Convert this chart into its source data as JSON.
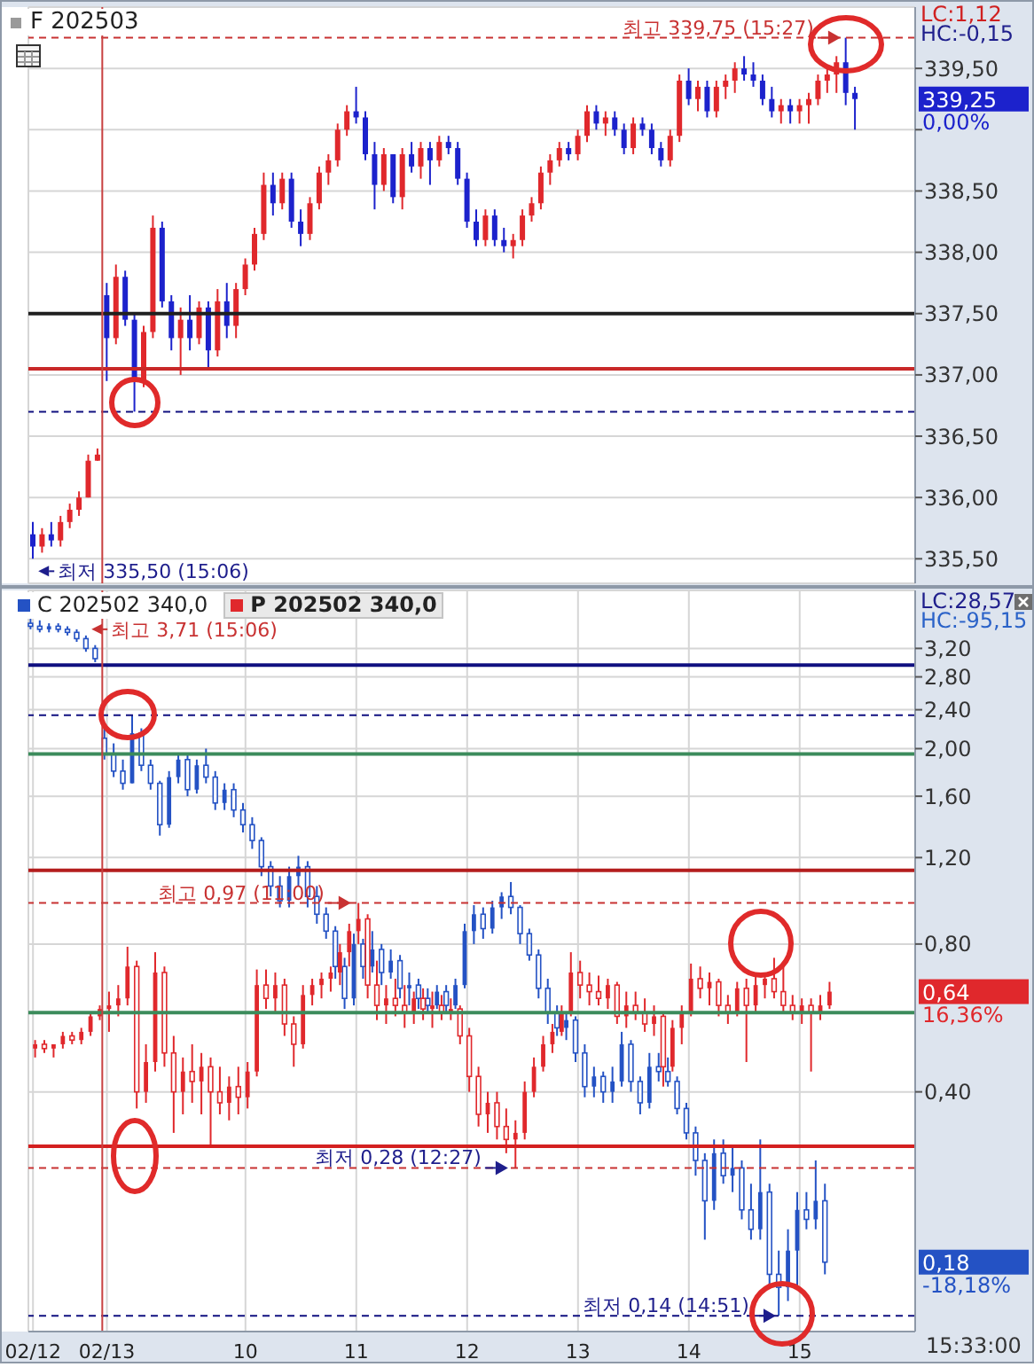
{
  "chart_data": [
    {
      "type": "candlestick",
      "title": "F 202503",
      "categories": [
        "02/12",
        null,
        null,
        null,
        null,
        null,
        null,
        null,
        "02/13",
        null,
        null,
        null,
        null,
        null,
        null,
        null,
        null,
        null,
        null,
        null,
        null,
        null,
        null,
        "10",
        null,
        null,
        null,
        null,
        null,
        null,
        null,
        null,
        null,
        null,
        null,
        "11",
        null,
        null,
        null,
        null,
        null,
        null,
        null,
        null,
        null,
        null,
        null,
        "12",
        null,
        null,
        null,
        null,
        null,
        null,
        null,
        null,
        null,
        null,
        null,
        "13",
        null,
        null,
        null,
        null,
        null,
        null,
        null,
        null,
        null,
        null,
        null,
        "14",
        null,
        null,
        null,
        null,
        null,
        null,
        null,
        null,
        null,
        null,
        null,
        "15",
        null,
        null,
        null,
        null,
        null,
        null,
        null,
        null,
        null,
        null,
        null,
        null
      ],
      "ohlc": [
        [
          335.7,
          335.8,
          335.5,
          335.6
        ],
        [
          335.6,
          335.75,
          335.55,
          335.7
        ],
        [
          335.7,
          335.8,
          335.6,
          335.65
        ],
        [
          335.65,
          335.85,
          335.6,
          335.8
        ],
        [
          335.8,
          335.95,
          335.75,
          335.9
        ],
        [
          335.9,
          336.05,
          335.85,
          336.0
        ],
        [
          336.0,
          336.35,
          336.0,
          336.3
        ],
        [
          336.3,
          336.4,
          336.3,
          336.35
        ],
        [
          337.65,
          337.75,
          336.95,
          337.3
        ],
        [
          337.3,
          337.9,
          337.25,
          337.8
        ],
        [
          337.8,
          337.85,
          337.4,
          337.45
        ],
        [
          337.45,
          337.5,
          336.7,
          336.95
        ],
        [
          336.95,
          337.4,
          336.9,
          337.35
        ],
        [
          337.35,
          338.3,
          337.3,
          338.2
        ],
        [
          338.2,
          338.25,
          337.55,
          337.6
        ],
        [
          337.6,
          337.65,
          337.2,
          337.3
        ],
        [
          337.3,
          337.55,
          337.0,
          337.45
        ],
        [
          337.45,
          337.65,
          337.2,
          337.3
        ],
        [
          337.3,
          337.6,
          337.25,
          337.55
        ],
        [
          337.55,
          337.6,
          337.05,
          337.2
        ],
        [
          337.2,
          337.7,
          337.15,
          337.6
        ],
        [
          337.6,
          337.75,
          337.3,
          337.4
        ],
        [
          337.4,
          337.75,
          337.3,
          337.7
        ],
        [
          337.7,
          337.95,
          337.65,
          337.9
        ],
        [
          337.9,
          338.2,
          337.85,
          338.15
        ],
        [
          338.15,
          338.65,
          338.1,
          338.55
        ],
        [
          338.55,
          338.65,
          338.3,
          338.4
        ],
        [
          338.4,
          338.65,
          338.35,
          338.6
        ],
        [
          338.6,
          338.65,
          338.2,
          338.25
        ],
        [
          338.25,
          338.35,
          338.05,
          338.15
        ],
        [
          338.15,
          338.45,
          338.1,
          338.4
        ],
        [
          338.4,
          338.7,
          338.35,
          338.65
        ],
        [
          338.65,
          338.8,
          338.55,
          338.75
        ],
        [
          338.75,
          339.05,
          338.7,
          339.0
        ],
        [
          339.0,
          339.2,
          338.95,
          339.15
        ],
        [
          339.15,
          339.35,
          339.05,
          339.1
        ],
        [
          339.1,
          339.15,
          338.75,
          338.8
        ],
        [
          338.8,
          338.9,
          338.35,
          338.55
        ],
        [
          338.55,
          338.85,
          338.5,
          338.8
        ],
        [
          338.8,
          338.8,
          338.4,
          338.45
        ],
        [
          338.45,
          338.85,
          338.35,
          338.8
        ],
        [
          338.8,
          338.9,
          338.65,
          338.7
        ],
        [
          338.7,
          338.9,
          338.6,
          338.85
        ],
        [
          338.85,
          338.9,
          338.55,
          338.75
        ],
        [
          338.75,
          338.95,
          338.7,
          338.9
        ],
        [
          338.9,
          338.95,
          338.8,
          338.85
        ],
        [
          338.85,
          338.9,
          338.55,
          338.6
        ],
        [
          338.6,
          338.65,
          338.2,
          338.25
        ],
        [
          338.25,
          338.35,
          338.05,
          338.1
        ],
        [
          338.1,
          338.35,
          338.05,
          338.3
        ],
        [
          338.3,
          338.35,
          338.05,
          338.1
        ],
        [
          338.1,
          338.2,
          338.0,
          338.05
        ],
        [
          338.05,
          338.15,
          337.95,
          338.1
        ],
        [
          338.1,
          338.35,
          338.05,
          338.3
        ],
        [
          338.3,
          338.45,
          338.25,
          338.4
        ],
        [
          338.4,
          338.7,
          338.35,
          338.65
        ],
        [
          338.65,
          338.8,
          338.55,
          338.75
        ],
        [
          338.75,
          338.9,
          338.7,
          338.85
        ],
        [
          338.85,
          338.9,
          338.75,
          338.8
        ],
        [
          338.8,
          339.0,
          338.75,
          338.95
        ],
        [
          338.95,
          339.2,
          338.9,
          339.15
        ],
        [
          339.15,
          339.2,
          339.0,
          339.05
        ],
        [
          339.05,
          339.15,
          338.95,
          339.1
        ],
        [
          339.1,
          339.15,
          338.95,
          339.0
        ],
        [
          339.0,
          339.05,
          338.8,
          338.85
        ],
        [
          338.85,
          339.1,
          338.8,
          339.05
        ],
        [
          339.05,
          339.1,
          338.95,
          339.0
        ],
        [
          339.0,
          339.05,
          338.8,
          338.85
        ],
        [
          338.85,
          338.9,
          338.7,
          338.75
        ],
        [
          338.75,
          339.0,
          338.7,
          338.95
        ],
        [
          338.95,
          339.45,
          338.9,
          339.4
        ],
        [
          339.4,
          339.5,
          339.2,
          339.25
        ],
        [
          339.25,
          339.4,
          339.15,
          339.35
        ],
        [
          339.35,
          339.4,
          339.1,
          339.15
        ],
        [
          339.15,
          339.4,
          339.1,
          339.35
        ],
        [
          339.35,
          339.45,
          339.25,
          339.4
        ],
        [
          339.4,
          339.55,
          339.3,
          339.5
        ],
        [
          339.5,
          339.6,
          339.4,
          339.45
        ],
        [
          339.45,
          339.55,
          339.35,
          339.4
        ],
        [
          339.4,
          339.45,
          339.2,
          339.25
        ],
        [
          339.25,
          339.35,
          339.1,
          339.15
        ],
        [
          339.15,
          339.25,
          339.05,
          339.2
        ],
        [
          339.2,
          339.25,
          339.05,
          339.15
        ],
        [
          339.15,
          339.25,
          339.05,
          339.2
        ],
        [
          339.2,
          339.3,
          339.05,
          339.25
        ],
        [
          339.25,
          339.45,
          339.2,
          339.4
        ],
        [
          339.4,
          339.5,
          339.3,
          339.45
        ],
        [
          339.45,
          339.6,
          339.3,
          339.55
        ],
        [
          339.55,
          339.75,
          339.2,
          339.3
        ],
        [
          339.3,
          339.35,
          339.0,
          339.25
        ],
        null,
        null,
        null,
        null,
        null,
        null
      ],
      "colors": [
        "#1c22cc",
        "#e0282c",
        "#1c22cc",
        "#e0282c",
        "#e0282c",
        "#e0282c",
        "#e0282c",
        "#e0282c",
        "#1c22cc",
        "#e0282c",
        "#1c22cc",
        "#1c22cc",
        "#e0282c",
        "#e0282c",
        "#1c22cc",
        "#1c22cc",
        "#e0282c",
        "#1c22cc",
        "#e0282c",
        "#1c22cc",
        "#e0282c",
        "#1c22cc",
        "#e0282c",
        "#e0282c",
        "#e0282c",
        "#e0282c",
        "#1c22cc",
        "#e0282c",
        "#1c22cc",
        "#1c22cc",
        "#e0282c",
        "#e0282c",
        "#e0282c",
        "#e0282c",
        "#e0282c",
        "#1c22cc",
        "#1c22cc",
        "#1c22cc",
        "#e0282c",
        "#1c22cc",
        "#e0282c",
        "#1c22cc",
        "#e0282c",
        "#1c22cc",
        "#e0282c",
        "#1c22cc",
        "#1c22cc",
        "#1c22cc",
        "#1c22cc",
        "#e0282c",
        "#1c22cc",
        "#1c22cc",
        "#e0282c",
        "#e0282c",
        "#e0282c",
        "#e0282c",
        "#e0282c",
        "#e0282c",
        "#1c22cc",
        "#e0282c",
        "#e0282c",
        "#1c22cc",
        "#e0282c",
        "#1c22cc",
        "#1c22cc",
        "#e0282c",
        "#1c22cc",
        "#1c22cc",
        "#1c22cc",
        "#e0282c",
        "#e0282c",
        "#1c22cc",
        "#e0282c",
        "#1c22cc",
        "#e0282c",
        "#e0282c",
        "#e0282c",
        "#1c22cc",
        "#1c22cc",
        "#1c22cc",
        "#1c22cc",
        "#e0282c",
        "#1c22cc",
        "#e0282c",
        "#e0282c",
        "#e0282c",
        "#e0282c",
        "#e0282c",
        "#1c22cc",
        "#1c22cc",
        null,
        null,
        null,
        null,
        null,
        null
      ],
      "ylim": [
        335.3,
        340.0
      ],
      "yticks": [
        {
          "value": 335.5,
          "label": "335,50"
        },
        {
          "value": 336.0,
          "label": "336,00"
        },
        {
          "value": 336.5,
          "label": "336,50"
        },
        {
          "value": 337.0,
          "label": "337,00"
        },
        {
          "value": 337.5,
          "label": "337,50"
        },
        {
          "value": 338.0,
          "label": "338,00"
        },
        {
          "value": 338.5,
          "label": "338,50"
        },
        {
          "value": 339.0,
          "label": null
        },
        {
          "value": 339.5,
          "label": "339,50"
        }
      ],
      "grid": true,
      "tick_labels": "y",
      "ref_lines": [
        {
          "axis": "y",
          "value": 339.75,
          "color": "#c83232",
          "line_style": "dashed"
        },
        {
          "axis": "y",
          "value": 337.5,
          "color": "#202020"
        },
        {
          "axis": "y",
          "value": 337.05,
          "color": "#c82828"
        },
        {
          "axis": "y",
          "value": 336.7,
          "color": "#101080",
          "line_style": "dashed"
        },
        {
          "axis": "x",
          "value": "02/13",
          "color": "#c84040"
        }
      ],
      "annotations": [
        "LC:1,12",
        "HC:-0,15",
        {
          "text": "최고 339,75 (15:27)",
          "y": 339.75
        },
        "최저 335,50 (15:06)",
        "339,25",
        "0,00%"
      ]
    },
    {
      "type": "candlestick",
      "categories": [
        "02/12",
        null,
        null,
        null,
        null,
        null,
        null,
        null,
        "02/13",
        null,
        null,
        null,
        null,
        null,
        null,
        null,
        null,
        null,
        null,
        null,
        null,
        null,
        null,
        "10",
        null,
        null,
        null,
        null,
        null,
        null,
        null,
        null,
        null,
        null,
        null,
        "11",
        null,
        null,
        null,
        null,
        null,
        null,
        null,
        null,
        null,
        null,
        null,
        "12",
        null,
        null,
        null,
        null,
        null,
        null,
        null,
        null,
        null,
        null,
        null,
        "13",
        null,
        null,
        null,
        null,
        null,
        null,
        null,
        null,
        null,
        null,
        null,
        "14",
        null,
        null,
        null,
        null,
        null,
        null,
        null,
        null,
        null,
        null,
        null,
        "15",
        null,
        null,
        null,
        null,
        null,
        null,
        null,
        null,
        null,
        null,
        null,
        null
      ],
      "series": [
        {
          "name": "C 202502 340,0",
          "color": "#2452c4",
          "ohlc": [
            [
              3.6,
              3.71,
              3.5,
              3.55
            ],
            [
              3.55,
              3.65,
              3.45,
              3.5
            ],
            [
              3.5,
              3.6,
              3.45,
              3.55
            ],
            [
              3.55,
              3.6,
              3.45,
              3.5
            ],
            [
              3.5,
              3.55,
              3.4,
              3.45
            ],
            [
              3.45,
              3.5,
              3.3,
              3.35
            ],
            [
              3.35,
              3.4,
              3.15,
              3.2
            ],
            [
              3.2,
              3.25,
              3.0,
              3.05
            ],
            [
              2.1,
              2.2,
              1.9,
              1.95
            ],
            [
              1.95,
              2.05,
              1.75,
              1.8
            ],
            [
              1.8,
              1.9,
              1.65,
              1.7
            ],
            [
              1.7,
              2.34,
              1.7,
              2.15
            ],
            [
              2.15,
              2.2,
              1.8,
              1.85
            ],
            [
              1.85,
              1.9,
              1.65,
              1.7
            ],
            [
              1.7,
              1.72,
              1.33,
              1.4
            ],
            [
              1.4,
              1.8,
              1.38,
              1.75
            ],
            [
              1.75,
              1.95,
              1.7,
              1.9
            ],
            [
              1.9,
              1.95,
              1.6,
              1.65
            ],
            [
              1.65,
              1.9,
              1.62,
              1.85
            ],
            [
              1.85,
              2.0,
              1.7,
              1.75
            ],
            [
              1.75,
              1.8,
              1.5,
              1.55
            ],
            [
              1.55,
              1.7,
              1.5,
              1.65
            ],
            [
              1.65,
              1.7,
              1.45,
              1.5
            ],
            [
              1.5,
              1.55,
              1.35,
              1.4
            ],
            [
              1.4,
              1.45,
              1.25,
              1.3
            ],
            [
              1.3,
              1.32,
              1.1,
              1.15
            ],
            [
              1.15,
              1.18,
              1.0,
              1.05
            ],
            [
              1.05,
              1.1,
              0.95,
              0.98
            ],
            [
              0.98,
              1.15,
              0.95,
              1.1
            ],
            [
              1.1,
              1.21,
              1.05,
              1.15
            ],
            [
              1.15,
              1.18,
              0.95,
              1.0
            ],
            [
              1.0,
              1.05,
              0.88,
              0.92
            ],
            [
              0.92,
              0.95,
              0.82,
              0.85
            ],
            [
              0.85,
              0.87,
              0.68,
              0.72
            ],
            [
              0.72,
              0.75,
              0.59,
              0.62
            ],
            [
              0.62,
              0.84,
              0.6,
              0.8
            ],
            [
              0.8,
              0.82,
              0.68,
              0.72
            ],
            [
              0.72,
              0.85,
              0.7,
              0.78
            ],
            [
              0.78,
              0.8,
              0.66,
              0.7
            ],
            [
              0.7,
              0.78,
              0.68,
              0.74
            ],
            [
              0.74,
              0.76,
              0.62,
              0.65
            ],
            [
              0.65,
              0.7,
              0.6,
              0.66
            ],
            [
              0.66,
              0.68,
              0.59,
              0.62
            ],
            [
              0.62,
              0.65,
              0.58,
              0.6
            ],
            [
              0.6,
              0.66,
              0.59,
              0.64
            ],
            [
              0.64,
              0.66,
              0.58,
              0.6
            ],
            [
              0.6,
              0.68,
              0.59,
              0.66
            ],
            [
              0.66,
              0.88,
              0.65,
              0.85
            ],
            [
              0.85,
              0.96,
              0.8,
              0.92
            ],
            [
              0.92,
              0.95,
              0.82,
              0.86
            ],
            [
              0.86,
              0.98,
              0.84,
              0.95
            ],
            [
              0.95,
              1.02,
              0.9,
              1.0
            ],
            [
              1.0,
              1.07,
              0.92,
              0.95
            ],
            [
              0.95,
              0.96,
              0.8,
              0.84
            ],
            [
              0.84,
              0.86,
              0.74,
              0.76
            ],
            [
              0.76,
              0.78,
              0.62,
              0.65
            ],
            [
              0.65,
              0.68,
              0.55,
              0.58
            ],
            [
              0.58,
              0.6,
              0.52,
              0.54
            ],
            [
              0.54,
              0.58,
              0.51,
              0.56
            ],
            [
              0.56,
              0.57,
              0.46,
              0.48
            ],
            [
              0.48,
              0.5,
              0.39,
              0.41
            ],
            [
              0.41,
              0.45,
              0.39,
              0.43
            ],
            [
              0.43,
              0.44,
              0.38,
              0.4
            ],
            [
              0.4,
              0.45,
              0.38,
              0.42
            ],
            [
              0.42,
              0.53,
              0.41,
              0.5
            ],
            [
              0.5,
              0.51,
              0.4,
              0.42
            ],
            [
              0.42,
              0.43,
              0.36,
              0.38
            ],
            [
              0.38,
              0.48,
              0.37,
              0.45
            ],
            [
              0.45,
              0.48,
              0.42,
              0.44
            ],
            [
              0.44,
              0.47,
              0.41,
              0.42
            ],
            [
              0.42,
              0.43,
              0.36,
              0.37
            ],
            [
              0.37,
              0.38,
              0.32,
              0.33
            ],
            [
              0.33,
              0.34,
              0.27,
              0.29
            ],
            [
              0.29,
              0.3,
              0.2,
              0.24
            ],
            [
              0.24,
              0.32,
              0.23,
              0.3
            ],
            [
              0.3,
              0.32,
              0.26,
              0.27
            ],
            [
              0.27,
              0.31,
              0.25,
              0.28
            ],
            [
              0.28,
              0.29,
              0.22,
              0.23
            ],
            [
              0.23,
              0.26,
              0.2,
              0.21
            ],
            [
              0.21,
              0.32,
              0.2,
              0.25
            ],
            [
              0.25,
              0.26,
              0.16,
              0.17
            ],
            [
              0.17,
              0.19,
              0.14,
              0.16
            ],
            [
              0.16,
              0.21,
              0.15,
              0.19
            ],
            [
              0.19,
              0.25,
              0.16,
              0.23
            ],
            [
              0.23,
              0.25,
              0.21,
              0.22
            ],
            [
              0.22,
              0.29,
              0.21,
              0.24
            ],
            [
              0.24,
              0.26,
              0.17,
              0.18
            ],
            null,
            null,
            null,
            null,
            null,
            null,
            null,
            null,
            null
          ]
        },
        {
          "name": "P 202502 340,0",
          "color": "#e0282c",
          "ohlc": [
            [
              0.49,
              0.51,
              0.47,
              0.5
            ],
            [
              0.5,
              0.51,
              0.48,
              0.49
            ],
            [
              0.49,
              0.5,
              0.47,
              0.5
            ],
            [
              0.5,
              0.53,
              0.49,
              0.52
            ],
            [
              0.52,
              0.53,
              0.5,
              0.51
            ],
            [
              0.51,
              0.54,
              0.5,
              0.53
            ],
            [
              0.53,
              0.58,
              0.52,
              0.57
            ],
            [
              0.57,
              0.6,
              0.56,
              0.59
            ],
            [
              0.59,
              0.64,
              0.53,
              0.6
            ],
            [
              0.6,
              0.66,
              0.57,
              0.62
            ],
            [
              0.62,
              0.79,
              0.6,
              0.72
            ],
            [
              0.72,
              0.74,
              0.37,
              0.4
            ],
            [
              0.4,
              0.5,
              0.38,
              0.46
            ],
            [
              0.46,
              0.77,
              0.44,
              0.7
            ],
            [
              0.7,
              0.72,
              0.45,
              0.48
            ],
            [
              0.48,
              0.52,
              0.33,
              0.4
            ],
            [
              0.4,
              0.47,
              0.36,
              0.44
            ],
            [
              0.44,
              0.5,
              0.38,
              0.42
            ],
            [
              0.42,
              0.48,
              0.36,
              0.45
            ],
            [
              0.45,
              0.47,
              0.31,
              0.4
            ],
            [
              0.4,
              0.45,
              0.36,
              0.38
            ],
            [
              0.38,
              0.43,
              0.35,
              0.41
            ],
            [
              0.41,
              0.45,
              0.36,
              0.39
            ],
            [
              0.39,
              0.46,
              0.37,
              0.44
            ],
            [
              0.44,
              0.71,
              0.43,
              0.66
            ],
            [
              0.66,
              0.71,
              0.59,
              0.62
            ],
            [
              0.62,
              0.7,
              0.58,
              0.66
            ],
            [
              0.66,
              0.68,
              0.52,
              0.55
            ],
            [
              0.55,
              0.57,
              0.45,
              0.5
            ],
            [
              0.5,
              0.66,
              0.49,
              0.63
            ],
            [
              0.63,
              0.68,
              0.6,
              0.66
            ],
            [
              0.66,
              0.7,
              0.62,
              0.68
            ],
            [
              0.68,
              0.72,
              0.64,
              0.7
            ],
            [
              0.7,
              0.8,
              0.66,
              0.77
            ],
            [
              0.77,
              0.88,
              0.72,
              0.85
            ],
            [
              0.85,
              0.97,
              0.8,
              0.9
            ],
            [
              0.9,
              0.92,
              0.62,
              0.66
            ],
            [
              0.66,
              0.74,
              0.56,
              0.6
            ],
            [
              0.6,
              0.66,
              0.55,
              0.62
            ],
            [
              0.62,
              0.68,
              0.57,
              0.6
            ],
            [
              0.6,
              0.66,
              0.54,
              0.58
            ],
            [
              0.58,
              0.64,
              0.55,
              0.62
            ],
            [
              0.62,
              0.65,
              0.56,
              0.59
            ],
            [
              0.59,
              0.64,
              0.54,
              0.6
            ],
            [
              0.6,
              0.63,
              0.56,
              0.58
            ],
            [
              0.58,
              0.62,
              0.56,
              0.59
            ],
            [
              0.59,
              0.6,
              0.5,
              0.52
            ],
            [
              0.52,
              0.54,
              0.4,
              0.43
            ],
            [
              0.43,
              0.45,
              0.34,
              0.36
            ],
            [
              0.36,
              0.4,
              0.33,
              0.38
            ],
            [
              0.38,
              0.4,
              0.32,
              0.34
            ],
            [
              0.34,
              0.37,
              0.3,
              0.32
            ],
            [
              0.32,
              0.35,
              0.28,
              0.33
            ],
            [
              0.33,
              0.42,
              0.32,
              0.4
            ],
            [
              0.4,
              0.47,
              0.39,
              0.45
            ],
            [
              0.45,
              0.52,
              0.44,
              0.5
            ],
            [
              0.5,
              0.55,
              0.48,
              0.53
            ],
            [
              0.53,
              0.6,
              0.52,
              0.58
            ],
            [
              0.58,
              0.77,
              0.57,
              0.7
            ],
            [
              0.7,
              0.74,
              0.62,
              0.66
            ],
            [
              0.66,
              0.7,
              0.6,
              0.64
            ],
            [
              0.64,
              0.69,
              0.6,
              0.62
            ],
            [
              0.62,
              0.68,
              0.59,
              0.66
            ],
            [
              0.66,
              0.67,
              0.55,
              0.57
            ],
            [
              0.57,
              0.64,
              0.54,
              0.6
            ],
            [
              0.6,
              0.64,
              0.56,
              0.58
            ],
            [
              0.58,
              0.62,
              0.53,
              0.55
            ],
            [
              0.55,
              0.6,
              0.52,
              0.57
            ],
            [
              0.57,
              0.58,
              0.41,
              0.45
            ],
            [
              0.45,
              0.56,
              0.44,
              0.54
            ],
            [
              0.54,
              0.6,
              0.5,
              0.58
            ],
            [
              0.58,
              0.73,
              0.57,
              0.68
            ],
            [
              0.68,
              0.72,
              0.62,
              0.65
            ],
            [
              0.65,
              0.7,
              0.6,
              0.67
            ],
            [
              0.67,
              0.68,
              0.57,
              0.6
            ],
            [
              0.6,
              0.63,
              0.55,
              0.58
            ],
            [
              0.58,
              0.67,
              0.57,
              0.65
            ],
            [
              0.65,
              0.68,
              0.46,
              0.6
            ],
            [
              0.6,
              0.69,
              0.58,
              0.66
            ],
            [
              0.66,
              0.7,
              0.62,
              0.68
            ],
            [
              0.68,
              0.75,
              0.62,
              0.64
            ],
            [
              0.64,
              0.72,
              0.58,
              0.6
            ],
            [
              0.6,
              0.63,
              0.56,
              0.58
            ],
            [
              0.58,
              0.62,
              0.55,
              0.6
            ],
            [
              0.6,
              0.62,
              0.44,
              0.58
            ],
            [
              0.58,
              0.63,
              0.56,
              0.6
            ],
            [
              0.6,
              0.67,
              0.59,
              0.64
            ],
            null,
            null,
            null,
            null,
            null,
            null,
            null,
            null,
            null
          ]
        }
      ],
      "ylim": [
        0.13,
        4.2
      ],
      "yticks": [
        {
          "value": 0.4,
          "label": "0,40"
        },
        {
          "value": 0.8,
          "label": "0,80"
        },
        {
          "value": 1.2,
          "label": "1,20"
        },
        {
          "value": 1.6,
          "label": "1,60"
        },
        {
          "value": 2.0,
          "label": "2,00"
        },
        {
          "value": 2.4,
          "label": "2,40"
        },
        {
          "value": 2.8,
          "label": "2,80"
        },
        {
          "value": 3.2,
          "label": "3,20"
        }
      ],
      "log": true,
      "grid": true,
      "legend": "top left",
      "ref_lines": [
        {
          "axis": "y",
          "value": 2.96,
          "color": "#101080"
        },
        {
          "axis": "y",
          "value": 2.34,
          "color": "#101080",
          "line_style": "dashed"
        },
        {
          "axis": "y",
          "value": 1.95,
          "color": "#3c8c5c"
        },
        {
          "axis": "y",
          "value": 1.13,
          "color": "#b41e1e"
        },
        {
          "axis": "y",
          "value": 0.97,
          "color": "#c83232",
          "line_style": "dashed"
        },
        {
          "axis": "y",
          "value": 0.58,
          "color": "#3c8c5c"
        },
        {
          "axis": "y",
          "value": 0.31,
          "color": "#d42020"
        },
        {
          "axis": "y",
          "value": 0.28,
          "color": "#c83232",
          "line_style": "dashed"
        },
        {
          "axis": "y",
          "value": 0.14,
          "color": "#101080",
          "line_style": "dashed"
        },
        {
          "axis": "x",
          "value": "02/13",
          "color": "#c84040"
        }
      ],
      "annotations": [
        "LC:28,57",
        "HC:-95,15",
        "최고 3,71 (15:06)",
        {
          "text": "최고 0,97 (11:00)",
          "y": 0.97
        },
        {
          "text": "최저 0,28 (12:27)",
          "y": 0.28
        },
        {
          "text": "최저 0,14 (14:51)",
          "y": 0.14
        },
        "0,64",
        "16,36%",
        "0,18",
        "-18,18%",
        "15:33:00"
      ]
    }
  ]
}
